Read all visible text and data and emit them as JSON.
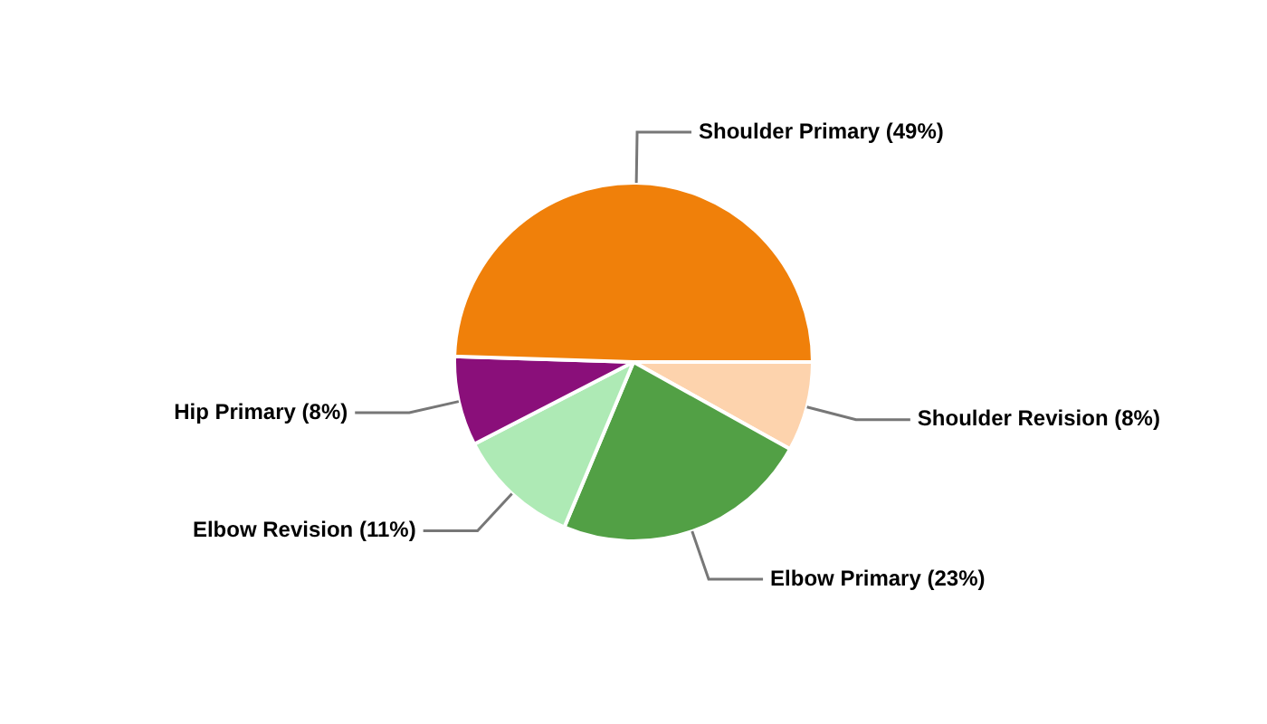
{
  "chart_data": {
    "type": "pie",
    "categories": [
      "Shoulder Revision",
      "Elbow Primary",
      "Elbow Revision",
      "Hip Primary",
      "Shoulder Primary"
    ],
    "values": [
      8,
      23,
      11,
      8,
      49
    ],
    "value_labels": [
      "(8%)",
      "(23%)",
      "(11%)",
      "(8%)",
      "(49%)"
    ],
    "colors": [
      "#fdd3ad",
      "#52a045",
      "#aeeab5",
      "#8a0f7a",
      "#f0800a"
    ],
    "legend": false
  }
}
